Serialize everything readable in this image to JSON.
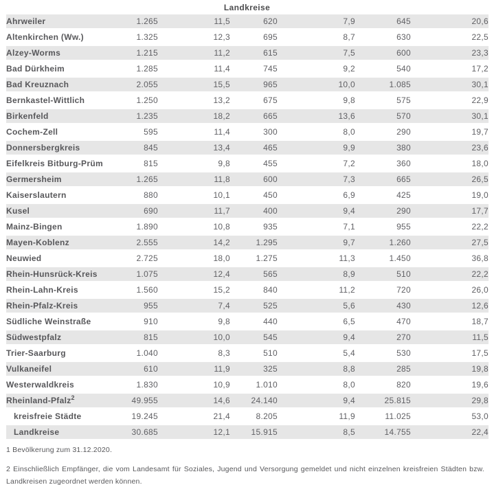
{
  "title": "Landkreise",
  "colors": {
    "stripe": "#e6e6e6",
    "name_text": "#57575a",
    "number_text": "#606064"
  },
  "table": {
    "rows": [
      {
        "name": "Ahrweiler",
        "values": [
          "1.265",
          "11,5",
          "620",
          "7,9",
          "645",
          "20,6"
        ]
      },
      {
        "name": "Altenkirchen (Ww.)",
        "values": [
          "1.325",
          "12,3",
          "695",
          "8,7",
          "630",
          "22,5"
        ]
      },
      {
        "name": "Alzey-Worms",
        "values": [
          "1.215",
          "11,2",
          "615",
          "7,5",
          "600",
          "23,3"
        ]
      },
      {
        "name": "Bad Dürkheim",
        "values": [
          "1.285",
          "11,4",
          "745",
          "9,2",
          "540",
          "17,2"
        ]
      },
      {
        "name": "Bad Kreuznach",
        "values": [
          "2.055",
          "15,5",
          "965",
          "10,0",
          "1.085",
          "30,1"
        ]
      },
      {
        "name": "Bernkastel-Wittlich",
        "values": [
          "1.250",
          "13,2",
          "675",
          "9,8",
          "575",
          "22,9"
        ]
      },
      {
        "name": "Birkenfeld",
        "values": [
          "1.235",
          "18,2",
          "665",
          "13,6",
          "570",
          "30,1"
        ]
      },
      {
        "name": "Cochem-Zell",
        "values": [
          "595",
          "11,4",
          "300",
          "8,0",
          "290",
          "19,7"
        ]
      },
      {
        "name": "Donnersbergkreis",
        "values": [
          "845",
          "13,4",
          "465",
          "9,9",
          "380",
          "23,6"
        ]
      },
      {
        "name": "Eifelkreis Bitburg-Prüm",
        "values": [
          "815",
          "9,8",
          "455",
          "7,2",
          "360",
          "18,0"
        ]
      },
      {
        "name": "Germersheim",
        "values": [
          "1.265",
          "11,8",
          "600",
          "7,3",
          "665",
          "26,5"
        ]
      },
      {
        "name": "Kaiserslautern",
        "values": [
          "880",
          "10,1",
          "450",
          "6,9",
          "425",
          "19,0"
        ]
      },
      {
        "name": "Kusel",
        "values": [
          "690",
          "11,7",
          "400",
          "9,4",
          "290",
          "17,7"
        ]
      },
      {
        "name": "Mainz-Bingen",
        "values": [
          "1.890",
          "10,8",
          "935",
          "7,1",
          "955",
          "22,2"
        ]
      },
      {
        "name": "Mayen-Koblenz",
        "values": [
          "2.555",
          "14,2",
          "1.295",
          "9,7",
          "1.260",
          "27,5"
        ]
      },
      {
        "name": "Neuwied",
        "values": [
          "2.725",
          "18,0",
          "1.275",
          "11,3",
          "1.450",
          "36,8"
        ]
      },
      {
        "name": "Rhein-Hunsrück-Kreis",
        "values": [
          "1.075",
          "12,4",
          "565",
          "8,9",
          "510",
          "22,2"
        ]
      },
      {
        "name": "Rhein-Lahn-Kreis",
        "values": [
          "1.560",
          "15,2",
          "840",
          "11,2",
          "720",
          "26,0"
        ]
      },
      {
        "name": "Rhein-Pfalz-Kreis",
        "values": [
          "955",
          "7,4",
          "525",
          "5,6",
          "430",
          "12,6"
        ]
      },
      {
        "name": "Südliche Weinstraße",
        "values": [
          "910",
          "9,8",
          "440",
          "6,5",
          "470",
          "18,7"
        ]
      },
      {
        "name": "Südwestpfalz",
        "values": [
          "815",
          "10,0",
          "545",
          "9,4",
          "270",
          "11,5"
        ]
      },
      {
        "name": "Trier-Saarburg",
        "values": [
          "1.040",
          "8,3",
          "510",
          "5,4",
          "530",
          "17,5"
        ]
      },
      {
        "name": "Vulkaneifel",
        "values": [
          "610",
          "11,9",
          "325",
          "8,8",
          "285",
          "19,8"
        ]
      },
      {
        "name": "Westerwaldkreis",
        "values": [
          "1.830",
          "10,9",
          "1.010",
          "8,0",
          "820",
          "19,6"
        ]
      },
      {
        "name": "Rheinland-Pfalz",
        "sup": "2",
        "values": [
          "49.955",
          "14,6",
          "24.140",
          "9,4",
          "25.815",
          "29,8"
        ]
      },
      {
        "name": "kreisfreie Städte",
        "indent": true,
        "values": [
          "19.245",
          "21,4",
          "8.205",
          "11,9",
          "11.025",
          "53,0"
        ]
      },
      {
        "name": "Landkreise",
        "indent": true,
        "values": [
          "30.685",
          "12,1",
          "15.915",
          "8,5",
          "14.755",
          "22,4"
        ]
      }
    ]
  },
  "footnotes": {
    "note1": "1 Bevölkerung zum 31.12.2020.",
    "note2": "2 Einschließlich Empfänger, die vom Landesamt für Soziales, Jugend und Versorgung gemeldet und nicht einzelnen kreisfreien Städten bzw. Landkreisen zugeordnet werden können."
  }
}
